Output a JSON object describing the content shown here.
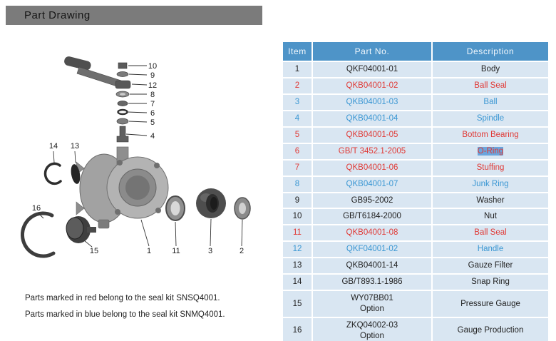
{
  "header": {
    "title": "Part Drawing"
  },
  "table": {
    "headers": [
      "Item",
      "Part No.",
      "Description"
    ],
    "rows": [
      {
        "item": "1",
        "part_no": "QKF04001-01",
        "description": "Body",
        "color": "black"
      },
      {
        "item": "2",
        "part_no": "QKB04001-02",
        "description": "Ball Seal",
        "color": "red"
      },
      {
        "item": "3",
        "part_no": "QKB04001-03",
        "description": "Ball",
        "color": "blue"
      },
      {
        "item": "4",
        "part_no": "QKB04001-04",
        "description": "Spindle",
        "color": "blue"
      },
      {
        "item": "5",
        "part_no": "QKB04001-05",
        "description": "Bottom Bearing",
        "color": "red"
      },
      {
        "item": "6",
        "part_no": "GB/T 3452.1-2005",
        "description": "O-Ring",
        "color": "red",
        "selected": true
      },
      {
        "item": "7",
        "part_no": "QKB04001-06",
        "description": "Stuffing",
        "color": "red"
      },
      {
        "item": "8",
        "part_no": "QKB04001-07",
        "description": "Junk Ring",
        "color": "blue"
      },
      {
        "item": "9",
        "part_no": "GB95-2002",
        "description": "Washer",
        "color": "black"
      },
      {
        "item": "10",
        "part_no": "GB/T6184-2000",
        "description": "Nut",
        "color": "black"
      },
      {
        "item": "11",
        "part_no": "QKB04001-08",
        "description": "Ball Seal",
        "color": "red"
      },
      {
        "item": "12",
        "part_no": "QKF04001-02",
        "description": "Handle",
        "color": "blue"
      },
      {
        "item": "13",
        "part_no": "QKB04001-14",
        "description": "Gauze Filter",
        "color": "black"
      },
      {
        "item": "14",
        "part_no": "GB/T893.1-1986",
        "description": "Snap Ring",
        "color": "black"
      },
      {
        "item": "15",
        "part_no": "WY07BB01\nOption",
        "description": "Pressure Gauge",
        "color": "black"
      },
      {
        "item": "16",
        "part_no": "ZKQ04002-03\nOption",
        "description": "Gauge Production",
        "color": "black"
      }
    ]
  },
  "notes": [
    "Parts marked in red  belong to the seal kit SNSQ4001.",
    "Parts marked in blue  belong to the seal kit SNMQ4001."
  ],
  "drawing": {
    "callouts": [
      "10",
      "9",
      "12",
      "8",
      "7",
      "6",
      "5",
      "4",
      "14",
      "13",
      "16",
      "15",
      "1",
      "11",
      "3",
      "2"
    ]
  },
  "colors": {
    "red_text": "#e03a36",
    "blue_text": "#3b97d3",
    "table_header_bg": "#4e94c8",
    "table_row_bg": "#d9e6f2",
    "selection_highlight": "#6aa5dd",
    "header_bar_gray": "#7b7b7b"
  }
}
